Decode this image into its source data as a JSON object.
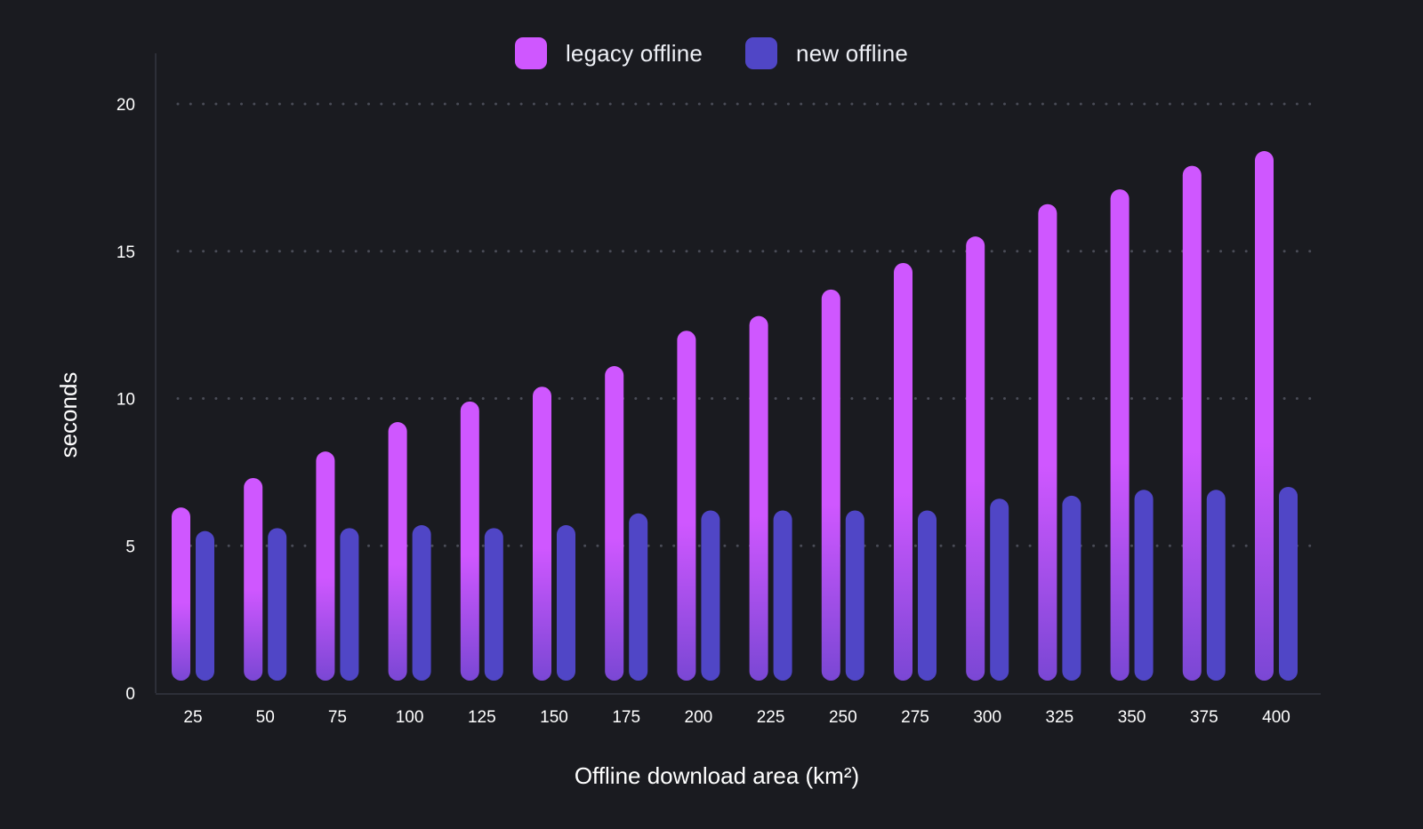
{
  "chart_data": {
    "type": "bar",
    "title": "",
    "xlabel": "Offline download area (km²)",
    "ylabel": "seconds",
    "categories": [
      "25",
      "50",
      "75",
      "100",
      "125",
      "150",
      "175",
      "200",
      "225",
      "250",
      "275",
      "300",
      "325",
      "350",
      "375",
      "400"
    ],
    "series": [
      {
        "name": "legacy offline",
        "color": "#cf57ff",
        "color_bottom": "#7a47d4",
        "values": [
          6.3,
          7.3,
          8.2,
          9.2,
          9.9,
          10.4,
          11.1,
          12.3,
          12.8,
          13.7,
          14.6,
          15.5,
          16.6,
          17.1,
          17.9,
          18.4
        ]
      },
      {
        "name": "new offline",
        "color": "#5046c6",
        "values": [
          5.5,
          5.6,
          5.6,
          5.7,
          5.6,
          5.7,
          6.1,
          6.2,
          6.2,
          6.2,
          6.2,
          6.6,
          6.7,
          6.9,
          6.9,
          7.0
        ]
      }
    ],
    "yticks": [
      0,
      5,
      10,
      15,
      20
    ],
    "ylim": [
      0,
      21.5
    ],
    "grid": true,
    "grid_style": "dotted",
    "legend_position": "top-center"
  }
}
